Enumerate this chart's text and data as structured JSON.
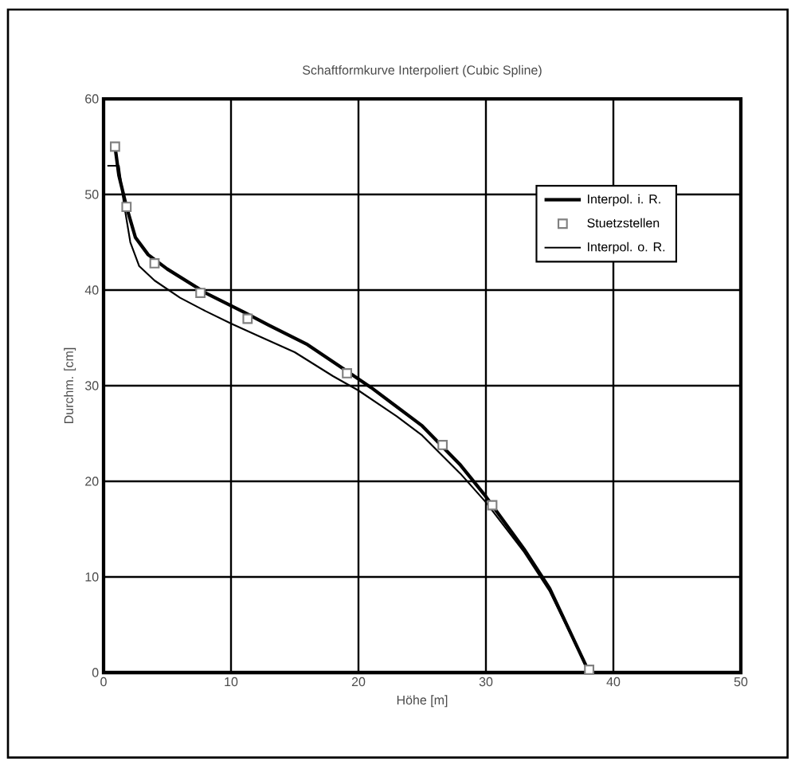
{
  "chart_data": {
    "type": "line",
    "title": "Schaftformkurve Interpoliert (Cubic Spline)",
    "xlabel": "Höhe [m]",
    "ylabel": "Durchm. [cm]",
    "xlim": [
      0,
      50
    ],
    "xticks": [
      0,
      10,
      20,
      30,
      40,
      50
    ],
    "ylim": [
      0,
      60
    ],
    "yticks": [
      0,
      10,
      20,
      30,
      40,
      50,
      60
    ],
    "grid": true,
    "legend": "top right",
    "series": [
      {
        "name": "Interpol. i. R.",
        "color": "#000000",
        "marker": "none",
        "x": [
          0.9,
          1.2,
          1.8,
          2.5,
          3.5,
          5,
          8,
          11,
          13,
          16,
          19,
          21,
          25,
          28,
          30,
          33,
          35,
          38
        ],
        "values": [
          55,
          52,
          48.7,
          45.5,
          43.7,
          42.2,
          39.7,
          37.7,
          36.3,
          34.3,
          31.6,
          29.8,
          25.8,
          21.7,
          18.4,
          12.9,
          8.8,
          0.3
        ]
      },
      {
        "name": "Stuetzstellen",
        "type": "scatter",
        "color": "#808080",
        "marker": "square",
        "x": [
          0.9,
          1.8,
          4,
          7.6,
          11.3,
          19.1,
          26.6,
          30.5,
          38.1
        ],
        "values": [
          55,
          48.7,
          42.8,
          39.7,
          37,
          31.3,
          23.8,
          17.5,
          0.3
        ]
      },
      {
        "name": "Interpol. o. R.",
        "color": "#000000",
        "marker": "none",
        "x": [
          0.3,
          1.2,
          1.6,
          2.1,
          2.8,
          4,
          6,
          8,
          10,
          12,
          15,
          18,
          20,
          23,
          25,
          28,
          30,
          33,
          35,
          38
        ],
        "values": [
          53,
          53,
          49,
          45,
          42.5,
          41,
          39.2,
          37.8,
          36.5,
          35.3,
          33.5,
          31,
          29.5,
          26.8,
          24.8,
          20.8,
          17.8,
          12.6,
          8.5,
          0.3
        ]
      }
    ]
  }
}
